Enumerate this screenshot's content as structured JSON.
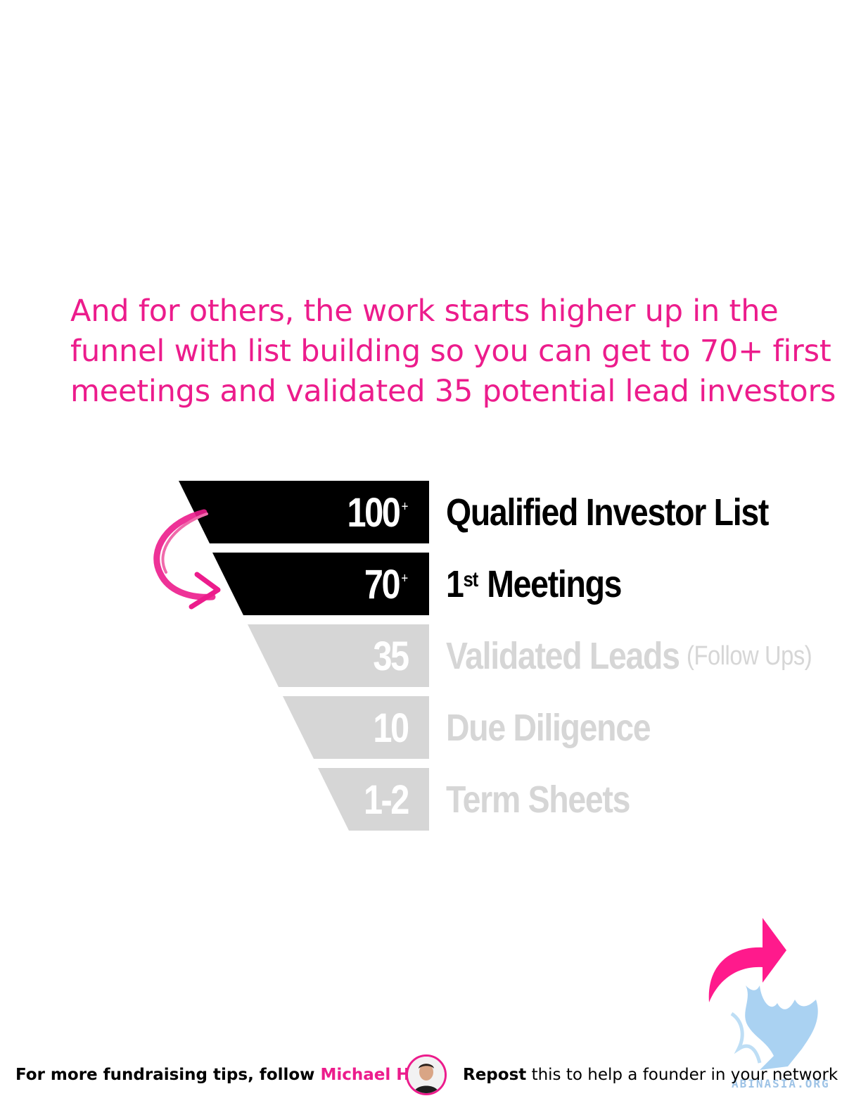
{
  "headline": "And for others, the work starts higher up in the funnel with list building so you can get to 70+ first meetings and validated 35 potential lead investors",
  "funnel": {
    "stages": [
      {
        "number": "100",
        "plus": "+",
        "label": "Qualified Investor List",
        "label_sup": "",
        "label_rest": "",
        "suffix": "",
        "state": "active"
      },
      {
        "number": "70",
        "plus": "+",
        "label": "1",
        "label_sup": "st",
        "label_rest": " Meetings",
        "suffix": "",
        "state": "active"
      },
      {
        "number": "35",
        "plus": "",
        "label": "Validated Leads",
        "label_sup": "",
        "label_rest": "",
        "suffix": "(Follow Ups)",
        "state": "faded"
      },
      {
        "number": "10",
        "plus": "",
        "label": "Due Diligence",
        "label_sup": "",
        "label_rest": "",
        "suffix": "",
        "state": "faded"
      },
      {
        "number": "1-2",
        "plus": "",
        "label": "Term Sheets",
        "label_sup": "",
        "label_rest": "",
        "suffix": "",
        "state": "faded"
      }
    ]
  },
  "footer": {
    "follow_text": "For more fundraising tips, follow ",
    "follow_name": "Michael Ho",
    "repost_bold": "Repost",
    "repost_rest": " this to help a founder in your network"
  },
  "watermark_text": "ABINASIA.ORG",
  "colors": {
    "accent": "#ec1c8c",
    "dark_band": "#000000",
    "faded_band": "#d6d6d6",
    "faded_text": "#d6d6d6"
  },
  "icons": [
    "curved-arrow-icon",
    "share-arrow-icon",
    "avatar",
    "griffin-watermark"
  ]
}
